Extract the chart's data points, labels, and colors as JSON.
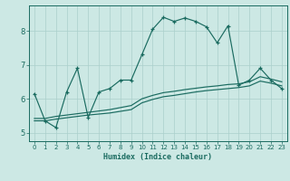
{
  "title": "",
  "xlabel": "Humidex (Indice chaleur)",
  "bg_color": "#cce8e4",
  "grid_color": "#aacfcb",
  "line_color": "#1a6b60",
  "xlim": [
    -0.5,
    23.5
  ],
  "ylim": [
    4.75,
    8.75
  ],
  "xticks": [
    0,
    1,
    2,
    3,
    4,
    5,
    6,
    7,
    8,
    9,
    10,
    11,
    12,
    13,
    14,
    15,
    16,
    17,
    18,
    19,
    20,
    21,
    22,
    23
  ],
  "yticks": [
    5,
    6,
    7,
    8
  ],
  "line1_x": [
    0,
    1,
    2,
    3,
    4,
    5,
    6,
    7,
    8,
    9,
    10,
    11,
    12,
    13,
    14,
    15,
    16,
    17,
    18,
    19,
    20,
    21,
    22,
    23
  ],
  "line1_y": [
    6.15,
    5.35,
    5.15,
    6.2,
    6.9,
    5.45,
    6.2,
    6.3,
    6.55,
    6.55,
    7.3,
    8.05,
    8.4,
    8.28,
    8.38,
    8.28,
    8.12,
    7.65,
    8.15,
    6.4,
    6.55,
    6.9,
    6.55,
    6.3
  ],
  "line2_x": [
    0,
    1,
    2,
    3,
    4,
    5,
    6,
    7,
    8,
    9,
    10,
    11,
    12,
    13,
    14,
    15,
    16,
    17,
    18,
    19,
    20,
    21,
    22,
    23
  ],
  "line2_y": [
    5.42,
    5.42,
    5.48,
    5.52,
    5.56,
    5.6,
    5.64,
    5.68,
    5.74,
    5.8,
    6.0,
    6.1,
    6.18,
    6.22,
    6.27,
    6.31,
    6.35,
    6.38,
    6.42,
    6.44,
    6.5,
    6.65,
    6.58,
    6.5
  ],
  "line3_x": [
    0,
    1,
    2,
    3,
    4,
    5,
    6,
    7,
    8,
    9,
    10,
    11,
    12,
    13,
    14,
    15,
    16,
    17,
    18,
    19,
    20,
    21,
    22,
    23
  ],
  "line3_y": [
    5.35,
    5.35,
    5.4,
    5.44,
    5.48,
    5.52,
    5.55,
    5.58,
    5.63,
    5.68,
    5.88,
    5.98,
    6.06,
    6.1,
    6.15,
    6.2,
    6.24,
    6.27,
    6.3,
    6.33,
    6.38,
    6.52,
    6.46,
    6.38
  ]
}
